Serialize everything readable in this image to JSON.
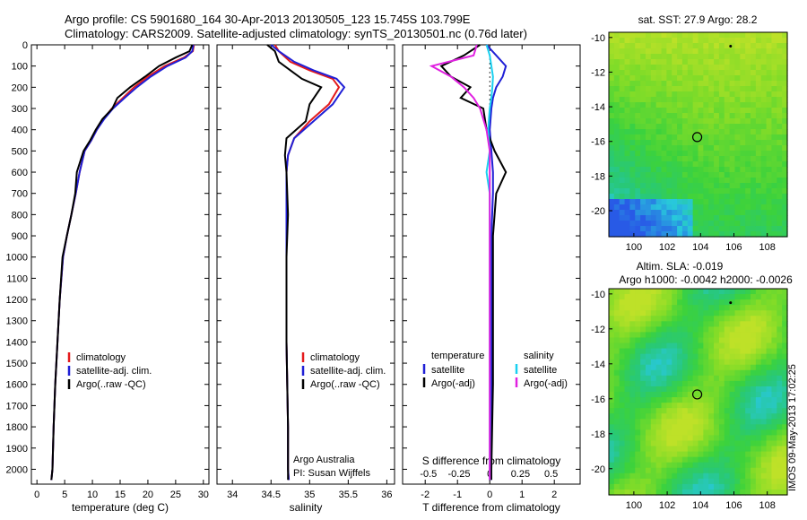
{
  "header": {
    "line1": "Argo profile: CS 5901680_164 30-Apr-2013 20130505_123 15.745S 103.799E",
    "line2": "Climatology: CARS2009. Satellite-adjusted climatology: synTS_20130501.nc (0.76d later)"
  },
  "side_text": "IMOS 09-May-2013 17:02:25",
  "colors": {
    "climatology": "#e41a1c",
    "satellite": "#1f1fd6",
    "argo": "#000000",
    "sal_sat": "#19d0f0",
    "sal_argo": "#e020e0"
  },
  "chart_data": [
    {
      "type": "line",
      "xlabel": "temperature (deg C)",
      "ylabel": "",
      "xlim": [
        -1,
        31
      ],
      "ylim": [
        0,
        2070
      ],
      "xticks": [
        0,
        5,
        10,
        15,
        20,
        25,
        30
      ],
      "yticks": [
        0,
        100,
        200,
        300,
        400,
        500,
        600,
        700,
        800,
        900,
        1000,
        1100,
        1200,
        1300,
        1400,
        1500,
        1600,
        1700,
        1800,
        1900,
        2000
      ],
      "legend": [
        "climatology",
        "satellite-adj. clim.",
        "Argo(..raw -QC)"
      ],
      "series": [
        {
          "name": "climatology",
          "x": [
            28.3,
            28.1,
            26.5,
            23,
            20,
            17.5,
            15.5,
            13.5,
            12,
            10.8,
            9.8,
            8.6,
            7.7,
            7,
            6.2,
            5.4,
            4.7,
            4.1,
            3.7,
            3.3,
            3.0,
            2.8,
            2.6
          ],
          "y": [
            0,
            30,
            60,
            100,
            150,
            200,
            250,
            300,
            350,
            400,
            450,
            500,
            600,
            700,
            800,
            900,
            1000,
            1200,
            1400,
            1600,
            1800,
            2000,
            2050
          ]
        },
        {
          "name": "satellite-adj. clim.",
          "x": [
            28.2,
            28.0,
            26.8,
            23.5,
            20.5,
            18,
            15.8,
            13.7,
            12.1,
            10.8,
            9.8,
            8.6,
            7.7,
            7,
            6.2,
            5.4,
            4.7,
            4.1,
            3.7,
            3.3,
            3.0,
            2.8,
            2.6
          ],
          "y": [
            0,
            30,
            60,
            100,
            150,
            200,
            250,
            300,
            350,
            400,
            450,
            500,
            600,
            700,
            800,
            900,
            1000,
            1200,
            1400,
            1600,
            1800,
            2000,
            2050
          ]
        },
        {
          "name": "Argo(..raw -QC)",
          "x": [
            28.0,
            27.5,
            25,
            22,
            19.5,
            16.8,
            14.5,
            13.6,
            11.8,
            10.6,
            9.6,
            8.4,
            7.2,
            6.9,
            6.2,
            5.4,
            4.6,
            4.1,
            3.7,
            3.3,
            3.0,
            2.8,
            2.6
          ],
          "y": [
            0,
            30,
            60,
            100,
            150,
            200,
            250,
            300,
            350,
            400,
            450,
            500,
            600,
            700,
            800,
            900,
            1000,
            1200,
            1400,
            1600,
            1800,
            2000,
            2050
          ]
        }
      ]
    },
    {
      "type": "line",
      "xlabel": "salinity",
      "ylabel": "",
      "xlim": [
        33.8,
        36.1
      ],
      "ylim": [
        0,
        2070
      ],
      "xticks": [
        34,
        34.5,
        35,
        35.5,
        36
      ],
      "legend": [
        "climatology",
        "satellite-adj. clim.",
        "Argo(..raw -QC)"
      ],
      "annotation": [
        "Argo Australia",
        "PI: Susan Wijffels"
      ],
      "series": [
        {
          "name": "climatology",
          "x": [
            34.55,
            34.6,
            34.75,
            35.0,
            35.3,
            35.38,
            35.25,
            35.0,
            34.8,
            34.72,
            34.7,
            34.7,
            34.7,
            34.7,
            34.72,
            34.72,
            34.73
          ],
          "y": [
            0,
            30,
            80,
            120,
            160,
            200,
            280,
            360,
            440,
            520,
            600,
            800,
            1000,
            1400,
            1800,
            2000,
            2050
          ]
        },
        {
          "name": "satellite-adj. clim.",
          "x": [
            34.5,
            34.6,
            34.8,
            35.05,
            35.35,
            35.45,
            35.3,
            35.05,
            34.8,
            34.72,
            34.7,
            34.7,
            34.7,
            34.7,
            34.72,
            34.72,
            34.73
          ],
          "y": [
            0,
            30,
            80,
            120,
            160,
            200,
            280,
            360,
            440,
            520,
            600,
            800,
            1000,
            1400,
            1800,
            2000,
            2050
          ]
        },
        {
          "name": "Argo(..raw -QC)",
          "x": [
            34.45,
            34.55,
            34.6,
            34.75,
            34.9,
            35.15,
            35.0,
            34.95,
            34.7,
            34.68,
            34.7,
            34.72,
            34.7,
            34.7,
            34.72,
            34.72,
            34.72
          ],
          "y": [
            0,
            30,
            80,
            120,
            160,
            200,
            280,
            360,
            440,
            520,
            600,
            800,
            1000,
            1400,
            1800,
            2000,
            2050
          ]
        }
      ]
    },
    {
      "type": "line",
      "xlabel": "T difference from climatology",
      "title": "S difference from climatology",
      "ylabel": "",
      "xlim": [
        -2.7,
        2.8
      ],
      "ylim": [
        0,
        2070
      ],
      "xticks": [
        -2,
        -1,
        0,
        1,
        2
      ],
      "xticks_top": [
        -0.5,
        -0.25,
        0,
        0.25,
        0.5
      ],
      "legend_left": {
        "heading": "temperature",
        "items": [
          "satellite",
          "Argo(-adj)"
        ]
      },
      "legend_right": {
        "heading": "salinity",
        "items": [
          "satellite",
          "Argo(-adj)"
        ]
      },
      "series": [
        {
          "name": "temperature satellite",
          "x": [
            -0.1,
            0.2,
            0.5,
            0.4,
            0.2,
            0.1,
            0.05,
            0.0,
            0.05,
            0.1,
            0.1,
            0.05,
            0.05,
            0.05,
            0.05,
            0.05
          ],
          "y": [
            0,
            50,
            100,
            150,
            200,
            250,
            300,
            400,
            500,
            600,
            700,
            900,
            1200,
            1600,
            2000,
            2050
          ]
        },
        {
          "name": "temperature Argo(-adj)",
          "x": [
            -0.3,
            -0.8,
            -1.5,
            -1.2,
            -0.6,
            -0.9,
            -0.2,
            -0.1,
            0.15,
            0.5,
            0.2,
            0.1,
            0.1,
            0.1,
            0.05,
            0.05
          ],
          "y": [
            0,
            50,
            100,
            150,
            200,
            250,
            300,
            400,
            500,
            600,
            700,
            900,
            1200,
            1600,
            2000,
            2050
          ]
        },
        {
          "name": "salinity satellite",
          "x": [
            -0.1,
            0.0,
            0.05,
            0.1,
            0.08,
            0.05,
            0.0,
            -0.05,
            0.0,
            -0.1,
            0.0,
            0.0,
            0.0,
            0.0,
            0.0,
            0.0
          ],
          "y": [
            0,
            50,
            100,
            150,
            200,
            250,
            300,
            400,
            500,
            600,
            700,
            900,
            1200,
            1600,
            2000,
            2050
          ]
        },
        {
          "name": "salinity Argo(-adj)",
          "x": [
            -0.4,
            -0.5,
            -1.8,
            -1.2,
            -0.8,
            -0.5,
            -0.3,
            -0.1,
            0.0,
            0.0,
            0.0,
            0.0,
            0.0,
            0.0,
            0.0,
            0.0
          ],
          "y": [
            0,
            50,
            100,
            150,
            200,
            250,
            300,
            400,
            500,
            600,
            700,
            900,
            1200,
            1600,
            2000,
            2050
          ]
        }
      ]
    },
    {
      "type": "heatmap",
      "title": "sat. SST: 27.9 Argo: 28.2",
      "xlim": [
        98.5,
        109.2
      ],
      "ylim": [
        -21.5,
        -9.7
      ],
      "xticks": [
        100,
        102,
        104,
        106,
        108
      ],
      "yticks": [
        -10,
        -12,
        -14,
        -16,
        -18,
        -20
      ],
      "marker": [
        103.8,
        -15.75
      ]
    },
    {
      "type": "heatmap",
      "title": "Altim. SLA: -0.019",
      "subtitle": "Argo h1000: -0.0042 h2000: -0.0026",
      "xlim": [
        98.5,
        109.2
      ],
      "ylim": [
        -21.5,
        -9.7
      ],
      "xticks": [
        100,
        102,
        104,
        106,
        108
      ],
      "yticks": [
        -10,
        -12,
        -14,
        -16,
        -18,
        -20
      ],
      "marker": [
        103.8,
        -15.75
      ]
    }
  ]
}
